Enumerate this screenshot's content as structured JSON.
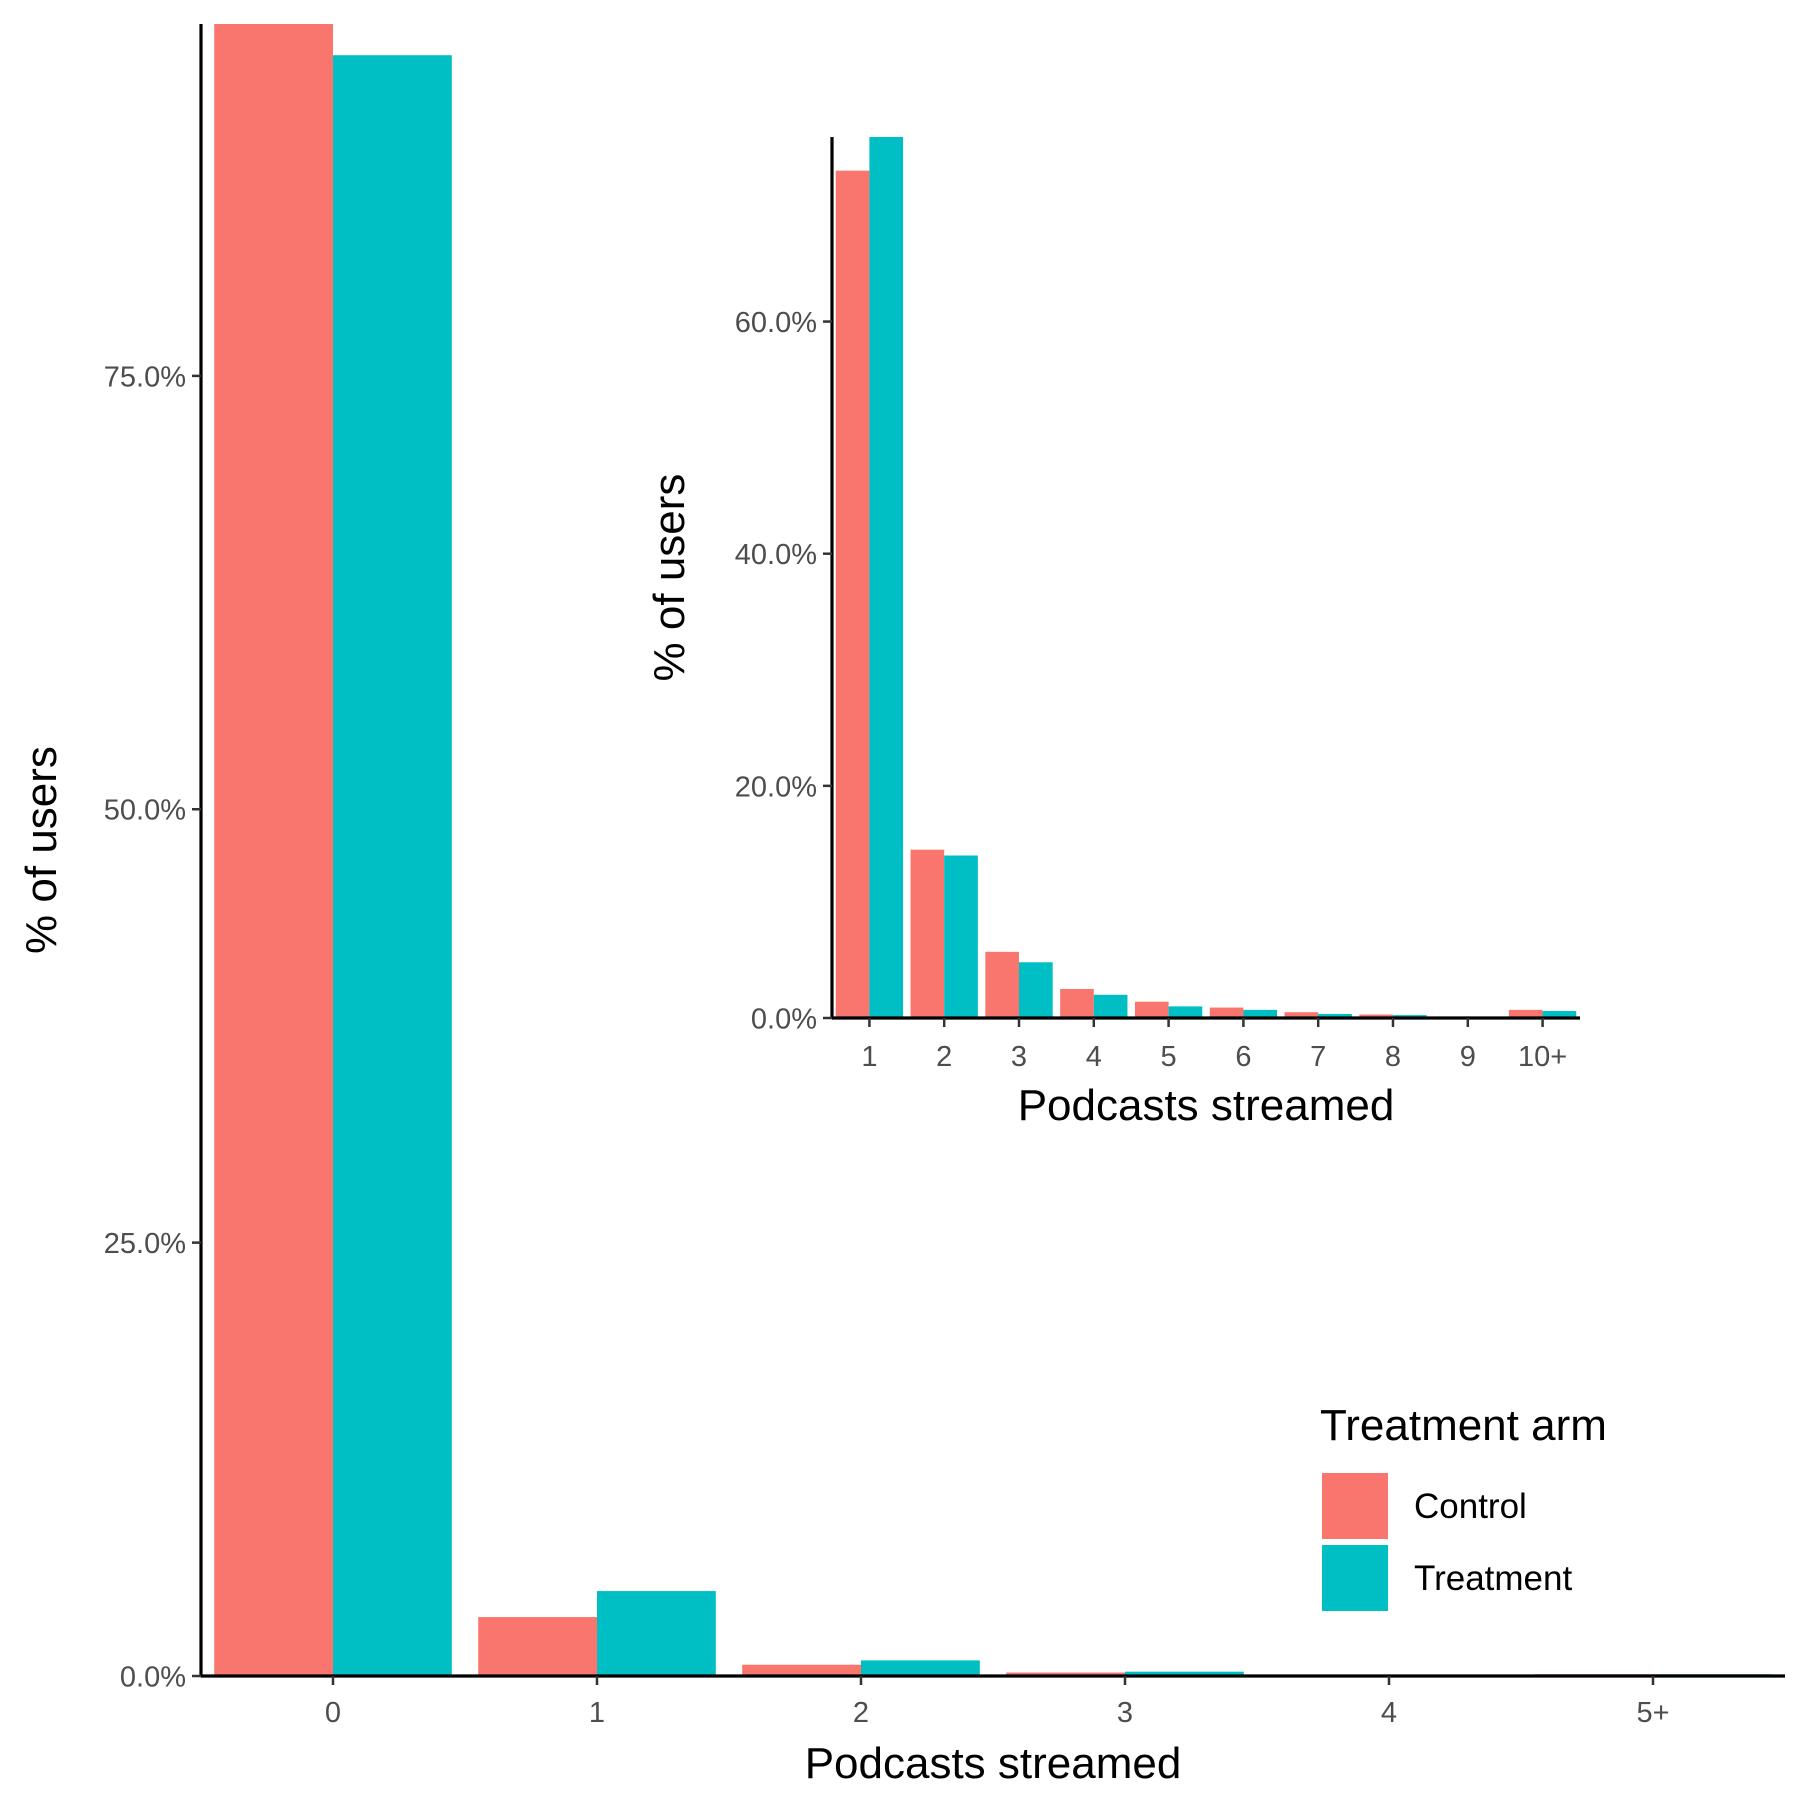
{
  "chart_data": [
    {
      "type": "bar",
      "categories": [
        "0",
        "1",
        "2",
        "3",
        "4",
        "5+"
      ],
      "series": [
        {
          "name": "Control",
          "color": "#F8766D",
          "values": [
            95.3,
            3.4,
            0.65,
            0.2,
            0.05,
            0.1
          ]
        },
        {
          "name": "Treatment",
          "color": "#00BFC4",
          "values": [
            93.5,
            4.9,
            0.9,
            0.25,
            0.06,
            0.1
          ]
        }
      ],
      "xlabel": "Podcasts streamed",
      "ylabel": "% of users",
      "ylim": [
        0,
        95.3
      ],
      "yticks": [
        0,
        25,
        50,
        75
      ],
      "ytick_labels": [
        "0.0%",
        "25.0%",
        "50.0%",
        "75.0%"
      ],
      "grid": false
    },
    {
      "type": "bar",
      "categories": [
        "1",
        "2",
        "3",
        "4",
        "5",
        "6",
        "7",
        "8",
        "9",
        "10+"
      ],
      "series": [
        {
          "name": "Control",
          "color": "#F8766D",
          "values": [
            73.0,
            14.5,
            5.7,
            2.5,
            1.4,
            0.9,
            0.5,
            0.3,
            0.1,
            0.7
          ]
        },
        {
          "name": "Treatment",
          "color": "#00BFC4",
          "values": [
            75.9,
            14.0,
            4.8,
            2.0,
            1.0,
            0.7,
            0.35,
            0.25,
            0.1,
            0.6
          ]
        }
      ],
      "xlabel": "Podcasts streamed",
      "ylabel": "% of users",
      "ylim": [
        0,
        75.9
      ],
      "yticks": [
        0,
        20,
        40,
        60
      ],
      "ytick_labels": [
        "0.0%",
        "20.0%",
        "40.0%",
        "60.0%"
      ],
      "grid": false
    }
  ],
  "legend": {
    "title": "Treatment arm",
    "placement": "bottom-right",
    "items": [
      {
        "label": "Control",
        "color": "#F8766D"
      },
      {
        "label": "Treatment",
        "color": "#00BFC4"
      }
    ]
  }
}
